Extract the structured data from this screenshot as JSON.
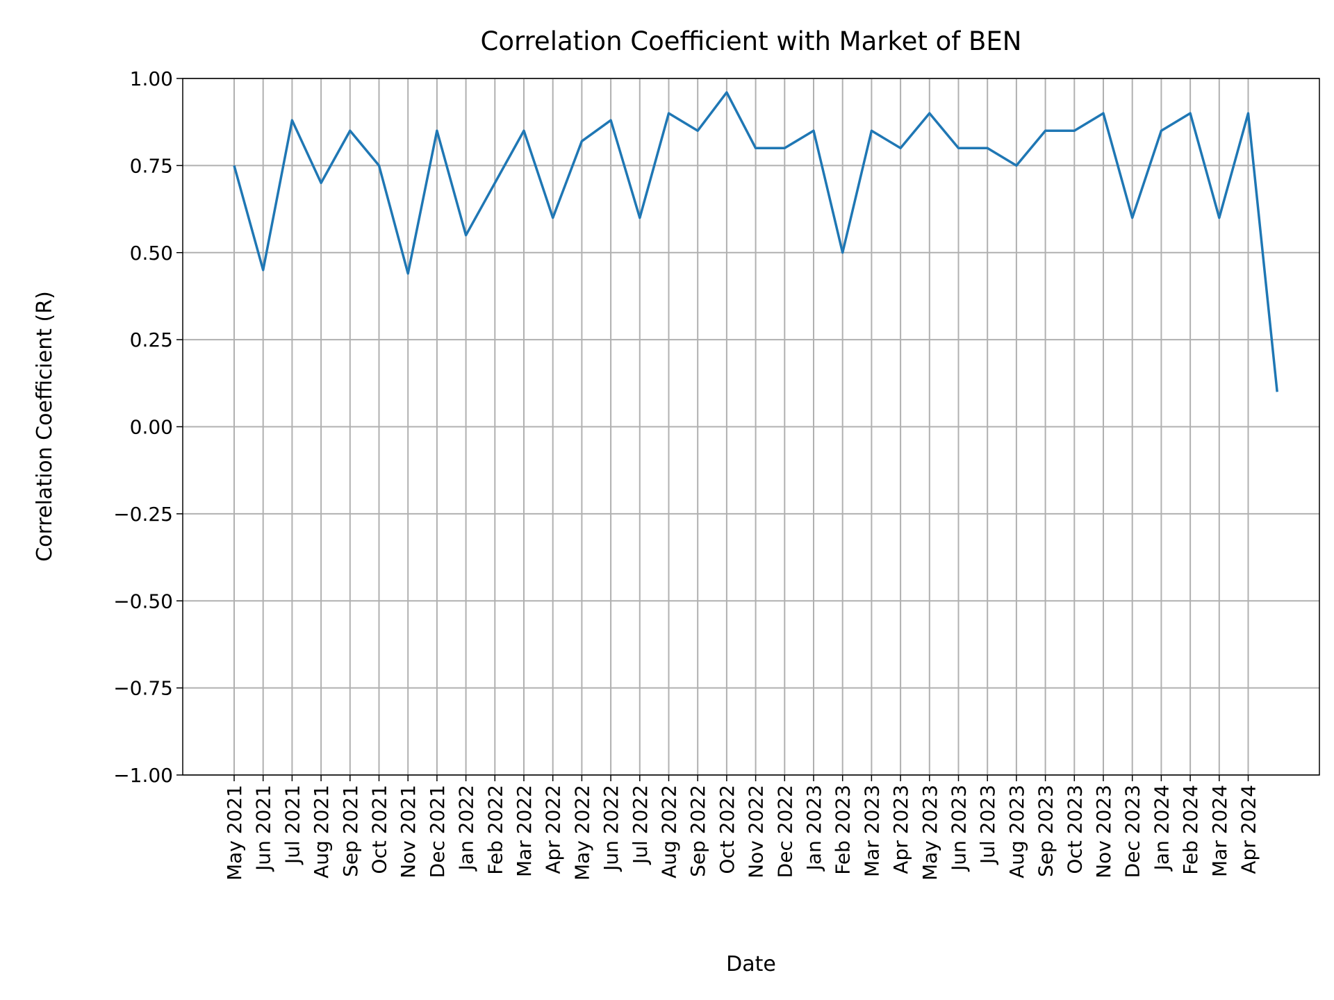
{
  "chart_data": {
    "type": "line",
    "title": "Correlation Coefficient with Market of BEN",
    "xlabel": "Date",
    "ylabel": "Correlation Coefficient (R)",
    "categories": [
      "May 2021",
      "Jun 2021",
      "Jul 2021",
      "Aug 2021",
      "Sep 2021",
      "Oct 2021",
      "Nov 2021",
      "Dec 2021",
      "Jan 2022",
      "Feb 2022",
      "Mar 2022",
      "Apr 2022",
      "May 2022",
      "Jun 2022",
      "Jul 2022",
      "Aug 2022",
      "Sep 2022",
      "Oct 2022",
      "Nov 2022",
      "Dec 2022",
      "Jan 2023",
      "Feb 2023",
      "Mar 2023",
      "Apr 2023",
      "May 2023",
      "Jun 2023",
      "Jul 2023",
      "Aug 2023",
      "Sep 2023",
      "Oct 2023",
      "Nov 2023",
      "Dec 2023",
      "Jan 2024",
      "Feb 2024",
      "Mar 2024",
      "Apr 2024",
      null
    ],
    "series": [
      {
        "color": "#1f77b4",
        "values": [
          0.75,
          0.45,
          0.88,
          0.7,
          0.85,
          0.75,
          0.44,
          0.85,
          0.55,
          0.7,
          0.85,
          0.6,
          0.82,
          0.88,
          0.6,
          0.9,
          0.85,
          0.96,
          0.8,
          0.8,
          0.85,
          0.5,
          0.85,
          0.8,
          0.9,
          0.8,
          0.8,
          0.75,
          0.85,
          0.85,
          0.9,
          0.6,
          0.85,
          0.9,
          0.6,
          0.9,
          0.1
        ]
      }
    ],
    "ylim": [
      -1.0,
      1.0
    ],
    "yticks": [
      {
        "value": -1.0,
        "label": "−1.00"
      },
      {
        "value": -0.75,
        "label": "−0.75"
      },
      {
        "value": -0.5,
        "label": "−0.50"
      },
      {
        "value": -0.25,
        "label": "−0.25"
      },
      {
        "value": 0,
        "label": "0.00"
      },
      {
        "value": 0.25,
        "label": "0.25"
      },
      {
        "value": 0.5,
        "label": "0.50"
      },
      {
        "value": 0.75,
        "label": "0.75"
      },
      {
        "value": 1.0,
        "label": "1.00"
      }
    ],
    "grid": true
  }
}
